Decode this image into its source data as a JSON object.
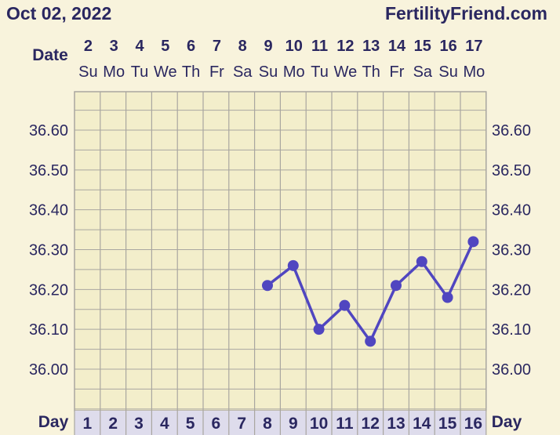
{
  "header": {
    "date_title": "Oct 02, 2022",
    "site": "FertilityFriend.com"
  },
  "colors": {
    "background": "#f8f3dc",
    "grid_background": "#f3eecb",
    "grid_line": "#a9a6a0",
    "line": "#5046c0",
    "text": "#2a2760",
    "day_row_bg": "#dedcec"
  },
  "chart_data": {
    "type": "line",
    "date_label": "Date",
    "day_label": "Day",
    "dates": [
      "2",
      "3",
      "4",
      "5",
      "6",
      "7",
      "8",
      "9",
      "10",
      "11",
      "12",
      "13",
      "14",
      "15",
      "16",
      "17"
    ],
    "weekdays": [
      "Su",
      "Mo",
      "Tu",
      "We",
      "Th",
      "Fr",
      "Sa",
      "Su",
      "Mo",
      "Tu",
      "We",
      "Th",
      "Fr",
      "Sa",
      "Su",
      "Mo"
    ],
    "days": [
      "1",
      "2",
      "3",
      "4",
      "5",
      "6",
      "7",
      "8",
      "9",
      "10",
      "11",
      "12",
      "13",
      "14",
      "15",
      "16"
    ],
    "y_ticks": [
      "36.60",
      "36.50",
      "36.40",
      "36.30",
      "36.20",
      "36.10",
      "36.00"
    ],
    "ylim": [
      35.9,
      36.7
    ],
    "series": [
      {
        "x": [
          8,
          9,
          10,
          11,
          12,
          13,
          14,
          15,
          16
        ],
        "values": [
          36.21,
          36.26,
          36.1,
          36.16,
          36.07,
          36.21,
          36.27,
          36.18,
          36.32
        ]
      }
    ],
    "grid": true
  }
}
